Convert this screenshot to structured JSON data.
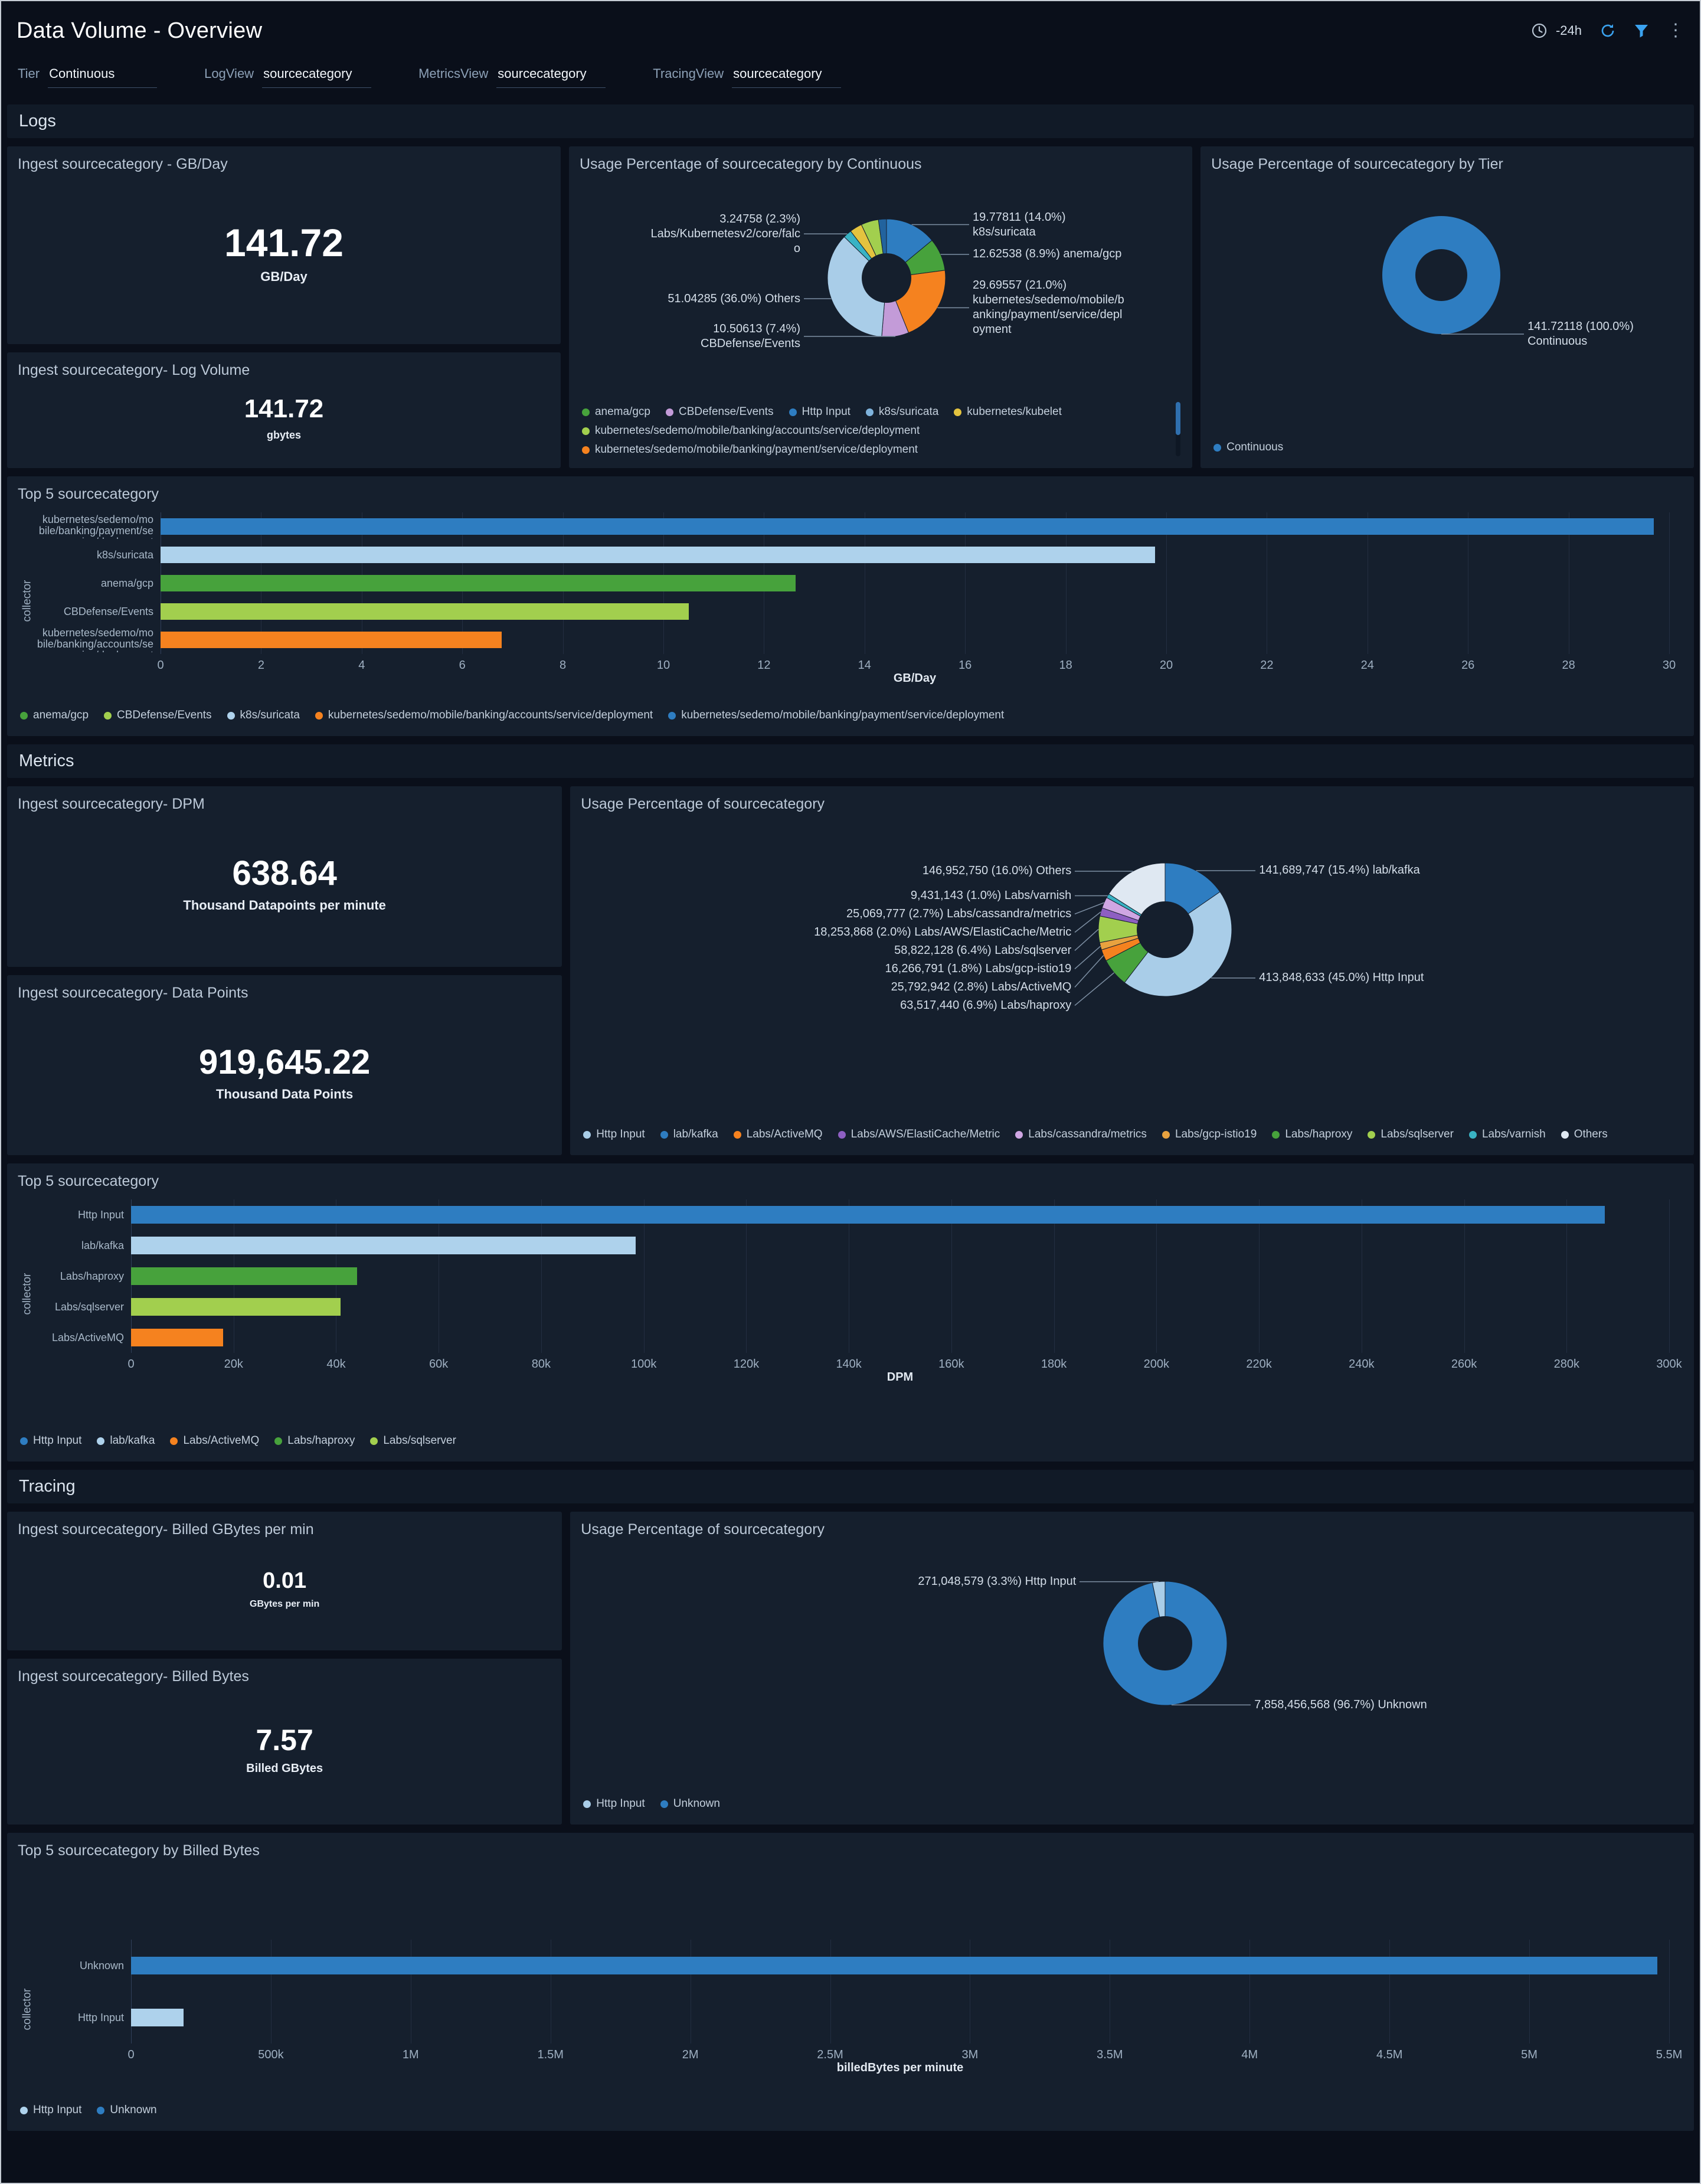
{
  "header": {
    "title": "Data Volume - Overview",
    "time_range": "-24h"
  },
  "filters": [
    {
      "label": "Tier",
      "value": "Continuous"
    },
    {
      "label": "LogView",
      "value": "sourcecategory"
    },
    {
      "label": "MetricsView",
      "value": "sourcecategory"
    },
    {
      "label": "TracingView",
      "value": "sourcecategory"
    }
  ],
  "sections": {
    "logs": "Logs",
    "metrics": "Metrics",
    "tracing": "Tracing"
  },
  "panels": {
    "logs_gbday": {
      "title": "Ingest sourcecategory - GB/Day",
      "value": "141.72",
      "unit": "GB/Day"
    },
    "logs_volume": {
      "title": "Ingest sourcecategory- Log Volume",
      "value": "141.72",
      "unit": "gbytes"
    },
    "logs_pie": {
      "title": "Usage Percentage of sourcecategory by Continuous"
    },
    "tier_pie": {
      "title": "Usage Percentage of sourcecategory by Tier"
    },
    "logs_top5": {
      "title": "Top 5 sourcecategory"
    },
    "metrics_dpm": {
      "title": "Ingest sourcecategory- DPM",
      "value": "638.64",
      "unit": "Thousand Datapoints per minute"
    },
    "metrics_points": {
      "title": "Ingest sourcecategory- Data Points",
      "value": "919,645.22",
      "unit": "Thousand Data Points"
    },
    "metrics_pie": {
      "title": "Usage Percentage of sourcecategory"
    },
    "metrics_top5": {
      "title": "Top 5 sourcecategory"
    },
    "tracing_gbmin": {
      "title": "Ingest sourcecategory- Billed GBytes per min",
      "value": "0.01",
      "unit": "GBytes per min"
    },
    "tracing_bytes": {
      "title": "Ingest sourcecategory- Billed Bytes",
      "value": "7.57",
      "unit": "Billed GBytes"
    },
    "tracing_pie": {
      "title": "Usage Percentage of sourcecategory"
    },
    "tracing_top5": {
      "title": "Top 5 sourcecategory by Billed Bytes"
    }
  },
  "chart_data": {
    "logs_pie": {
      "type": "pie",
      "title": "Usage Percentage of sourcecategory by Continuous",
      "slices": [
        {
          "label": "k8s/suricata",
          "pct": 14.0,
          "color": "#2e7dc1",
          "callout": "19.77811 (14.0%) k8s/suricata"
        },
        {
          "label": "anema/gcp",
          "pct": 8.9,
          "color": "#47a23c",
          "callout": "12.62538 (8.9%) anema/gcp"
        },
        {
          "label": "kubernetes/sedemo/mobile/banking/payment/service/deployment",
          "pct": 21.0,
          "color": "#f5821f",
          "callout": "29.69557 (21.0%) kubernetes/sedemo/mobile/banking/payment/service/deployment"
        },
        {
          "label": "CBDefense/Events",
          "pct": 7.4,
          "color": "#c39bd8",
          "callout": "10.50613 (7.4%) CBDefense/Events",
          "side": "left"
        },
        {
          "label": "Others",
          "pct": 36.0,
          "color": "#a9cde8",
          "callout": "51.04285 (36.0%) Others"
        },
        {
          "label": "Labs/Kubernetesv2/core/falco",
          "pct": 2.3,
          "color": "#39b3c4",
          "callout": "3.24758 (2.3%) Labs/Kubernetesv2/core/falco"
        },
        {
          "label": "kubernetes/kubelet",
          "pct": 3.4,
          "color": "#e3c33f"
        },
        {
          "label": "kubernetes/sedemo/mobile/banking/accounts/service/deployment",
          "pct": 4.8,
          "color": "#a2cf4e"
        },
        {
          "label": "Http Input",
          "pct": 2.2,
          "color": "#22639e"
        }
      ],
      "legend": [
        {
          "label": "anema/gcp",
          "color": "#47a23c"
        },
        {
          "label": "CBDefense/Events",
          "color": "#c39bd8"
        },
        {
          "label": "Http Input",
          "color": "#2e7dc1"
        },
        {
          "label": "k8s/suricata",
          "color": "#7fb3dc"
        },
        {
          "label": "kubernetes/kubelet",
          "color": "#e3c33f"
        },
        {
          "label": "kubernetes/sedemo/mobile/banking/accounts/service/deployment",
          "color": "#a2cf4e"
        },
        {
          "label": "kubernetes/sedemo/mobile/banking/payment/service/deployment",
          "color": "#f5821f"
        }
      ]
    },
    "tier_pie": {
      "type": "pie",
      "title": "Usage Percentage of sourcecategory by Tier",
      "slices": [
        {
          "label": "Continuous",
          "pct": 100.0,
          "color": "#2e7dc1",
          "callout": "141.72118 (100.0%) Continuous"
        }
      ],
      "legend": [
        {
          "label": "Continuous",
          "color": "#2e7dc1"
        }
      ]
    },
    "logs_top5": {
      "type": "bar",
      "orientation": "horizontal",
      "xlabel": "GB/Day",
      "ylabel": "collector",
      "xmax": 30,
      "ticks": [
        {
          "v": 0,
          "l": "0"
        },
        {
          "v": 2,
          "l": "2"
        },
        {
          "v": 4,
          "l": "4"
        },
        {
          "v": 6,
          "l": "6"
        },
        {
          "v": 8,
          "l": "8"
        },
        {
          "v": 10,
          "l": "10"
        },
        {
          "v": 12,
          "l": "12"
        },
        {
          "v": 14,
          "l": "14"
        },
        {
          "v": 16,
          "l": "16"
        },
        {
          "v": 18,
          "l": "18"
        },
        {
          "v": 20,
          "l": "20"
        },
        {
          "v": 22,
          "l": "22"
        },
        {
          "v": 24,
          "l": "24"
        },
        {
          "v": 26,
          "l": "26"
        },
        {
          "v": 28,
          "l": "28"
        },
        {
          "v": 30,
          "l": "30"
        }
      ],
      "rows": [
        {
          "label": "kubernetes/sedemo/mobile/banking/payment/service/deployment",
          "value": 29.7,
          "color": "#2e7dc1"
        },
        {
          "label": "k8s/suricata",
          "value": 19.78,
          "color": "#aed2ec"
        },
        {
          "label": "anema/gcp",
          "value": 12.63,
          "color": "#47a23c"
        },
        {
          "label": "CBDefense/Events",
          "value": 10.51,
          "color": "#a2cf4e"
        },
        {
          "label": "kubernetes/sedemo/mobile/banking/accounts/service/deployment",
          "value": 6.78,
          "color": "#f5821f"
        }
      ],
      "legend": [
        {
          "label": "anema/gcp",
          "color": "#47a23c"
        },
        {
          "label": "CBDefense/Events",
          "color": "#a2cf4e"
        },
        {
          "label": "k8s/suricata",
          "color": "#aed2ec"
        },
        {
          "label": "kubernetes/sedemo/mobile/banking/accounts/service/deployment",
          "color": "#f5821f"
        },
        {
          "label": "kubernetes/sedemo/mobile/banking/payment/service/deployment",
          "color": "#2e7dc1"
        }
      ]
    },
    "metrics_pie": {
      "type": "pie",
      "title": "Usage Percentage of sourcecategory",
      "slices": [
        {
          "label": "lab/kafka",
          "pct": 15.4,
          "color": "#2e7dc1",
          "callout": "141,689,747 (15.4%) lab/kafka"
        },
        {
          "label": "Http Input",
          "pct": 45.0,
          "color": "#a9cde8",
          "callout": "413,848,633 (45.0%) Http Input"
        },
        {
          "label": "Labs/haproxy",
          "pct": 6.9,
          "color": "#47a23c",
          "callout": "63,517,440 (6.9%) Labs/haproxy"
        },
        {
          "label": "Labs/ActiveMQ",
          "pct": 2.8,
          "color": "#f5821f",
          "callout": "25,792,942 (2.8%) Labs/ActiveMQ"
        },
        {
          "label": "Labs/gcp-istio19",
          "pct": 1.8,
          "color": "#e8a23f",
          "callout": "16,266,791 (1.8%) Labs/gcp-istio19"
        },
        {
          "label": "Labs/sqlserver",
          "pct": 6.4,
          "color": "#a2cf4e",
          "callout": "58,822,128 (6.4%) Labs/sqlserver"
        },
        {
          "label": "Labs/AWS/ElastiCache/Metric",
          "pct": 2.0,
          "color": "#8e5fc2",
          "callout": "18,253,868 (2.0%) Labs/AWS/ElastiCache/Metric"
        },
        {
          "label": "Labs/cassandra/metrics",
          "pct": 2.7,
          "color": "#cfa6e3",
          "callout": "25,069,777 (2.7%) Labs/cassandra/metrics"
        },
        {
          "label": "Labs/varnish",
          "pct": 1.0,
          "color": "#39b3c4",
          "callout": "9,431,143 (1.0%) Labs/varnish"
        },
        {
          "label": "Others",
          "pct": 16.0,
          "color": "#dfe8f2",
          "callout": "146,952,750 (16.0%) Others"
        }
      ],
      "legend": [
        {
          "label": "Http Input",
          "color": "#a9cde8"
        },
        {
          "label": "lab/kafka",
          "color": "#2e7dc1"
        },
        {
          "label": "Labs/ActiveMQ",
          "color": "#f5821f"
        },
        {
          "label": "Labs/AWS/ElastiCache/Metric",
          "color": "#8e5fc2"
        },
        {
          "label": "Labs/cassandra/metrics",
          "color": "#cfa6e3"
        },
        {
          "label": "Labs/gcp-istio19",
          "color": "#e8a23f"
        },
        {
          "label": "Labs/haproxy",
          "color": "#47a23c"
        },
        {
          "label": "Labs/sqlserver",
          "color": "#a2cf4e"
        },
        {
          "label": "Labs/varnish",
          "color": "#39b3c4"
        },
        {
          "label": "Others",
          "color": "#dfe8f2"
        }
      ]
    },
    "metrics_top5": {
      "type": "bar",
      "orientation": "horizontal",
      "xlabel": "DPM",
      "ylabel": "collector",
      "xmax": 300000,
      "ticks": [
        {
          "v": 0,
          "l": "0"
        },
        {
          "v": 20000,
          "l": "20k"
        },
        {
          "v": 40000,
          "l": "40k"
        },
        {
          "v": 60000,
          "l": "60k"
        },
        {
          "v": 80000,
          "l": "80k"
        },
        {
          "v": 100000,
          "l": "100k"
        },
        {
          "v": 120000,
          "l": "120k"
        },
        {
          "v": 140000,
          "l": "140k"
        },
        {
          "v": 160000,
          "l": "160k"
        },
        {
          "v": 180000,
          "l": "180k"
        },
        {
          "v": 200000,
          "l": "200k"
        },
        {
          "v": 220000,
          "l": "220k"
        },
        {
          "v": 240000,
          "l": "240k"
        },
        {
          "v": 260000,
          "l": "260k"
        },
        {
          "v": 280000,
          "l": "280k"
        },
        {
          "v": 300000,
          "l": "300k"
        }
      ],
      "rows": [
        {
          "label": "Http Input",
          "value": 287395,
          "color": "#2e7dc1"
        },
        {
          "label": "lab/kafka",
          "value": 98396,
          "color": "#aed2ec"
        },
        {
          "label": "Labs/haproxy",
          "value": 44109,
          "color": "#47a23c"
        },
        {
          "label": "Labs/sqlserver",
          "value": 40849,
          "color": "#a2cf4e"
        },
        {
          "label": "Labs/ActiveMQ",
          "value": 17911,
          "color": "#f5821f"
        }
      ],
      "legend": [
        {
          "label": "Http Input",
          "color": "#2e7dc1"
        },
        {
          "label": "lab/kafka",
          "color": "#aed2ec"
        },
        {
          "label": "Labs/ActiveMQ",
          "color": "#f5821f"
        },
        {
          "label": "Labs/haproxy",
          "color": "#47a23c"
        },
        {
          "label": "Labs/sqlserver",
          "color": "#a2cf4e"
        }
      ]
    },
    "tracing_pie": {
      "type": "pie",
      "title": "Usage Percentage of sourcecategory",
      "slices": [
        {
          "label": "Unknown",
          "pct": 96.7,
          "color": "#2e7dc1",
          "callout": "7,858,456,568 (96.7%) Unknown"
        },
        {
          "label": "Http Input",
          "pct": 3.3,
          "color": "#a9cde8",
          "callout": "271,048,579 (3.3%) Http Input"
        }
      ],
      "legend": [
        {
          "label": "Http Input",
          "color": "#a9cde8"
        },
        {
          "label": "Unknown",
          "color": "#2e7dc1"
        }
      ]
    },
    "tracing_top5": {
      "type": "bar",
      "orientation": "horizontal",
      "xlabel": "billedBytes per minute",
      "ylabel": "collector",
      "xmax": 5500000,
      "ticks": [
        {
          "v": 0,
          "l": "0"
        },
        {
          "v": 500000,
          "l": "500k"
        },
        {
          "v": 1000000,
          "l": "1M"
        },
        {
          "v": 1500000,
          "l": "1.5M"
        },
        {
          "v": 2000000,
          "l": "2M"
        },
        {
          "v": 2500000,
          "l": "2.5M"
        },
        {
          "v": 3000000,
          "l": "3M"
        },
        {
          "v": 3500000,
          "l": "3.5M"
        },
        {
          "v": 4000000,
          "l": "4M"
        },
        {
          "v": 4500000,
          "l": "4.5M"
        },
        {
          "v": 5000000,
          "l": "5M"
        },
        {
          "v": 5500000,
          "l": "5.5M"
        }
      ],
      "rows": [
        {
          "label": "Unknown",
          "value": 5457261,
          "color": "#2e7dc1"
        },
        {
          "label": "Http Input",
          "value": 188228,
          "color": "#aed2ec"
        }
      ],
      "legend": [
        {
          "label": "Http Input",
          "color": "#aed2ec"
        },
        {
          "label": "Unknown",
          "color": "#2e7dc1"
        }
      ]
    }
  }
}
